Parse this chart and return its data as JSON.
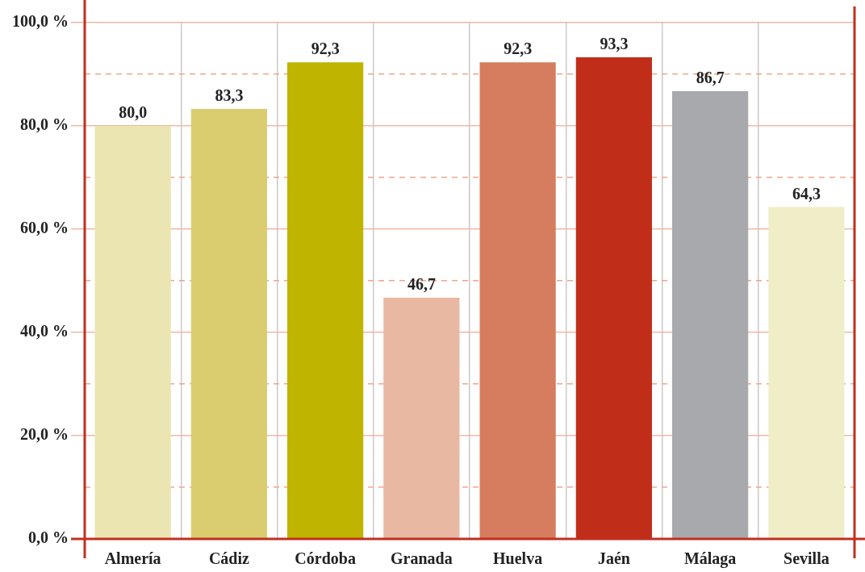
{
  "chart_data": {
    "type": "bar",
    "categories": [
      "Almería",
      "Cádiz",
      "Córdoba",
      "Granada",
      "Huelva",
      "Jaén",
      "Málaga",
      "Sevilla"
    ],
    "values": [
      80.0,
      83.3,
      92.3,
      46.7,
      92.3,
      93.3,
      86.7,
      64.3
    ],
    "colors": [
      "#ebe5b1",
      "#d9cd70",
      "#bfb400",
      "#e9b8a2",
      "#d67c5f",
      "#c02e1a",
      "#a8a9ac",
      "#f0edc9"
    ],
    "value_labels": [
      "80,0",
      "83,3",
      "92,3",
      "46,7",
      "92,3",
      "93,3",
      "86,7",
      "64,3"
    ],
    "ylim": [
      0,
      100
    ],
    "yticks": [
      {
        "value": 0,
        "label": "0,0 %"
      },
      {
        "value": 10,
        "label": null
      },
      {
        "value": 20,
        "label": "20,0 %"
      },
      {
        "value": 30,
        "label": null
      },
      {
        "value": 40,
        "label": "40,0 %"
      },
      {
        "value": 50,
        "label": null
      },
      {
        "value": 60,
        "label": "60,0 %"
      },
      {
        "value": 70,
        "label": null
      },
      {
        "value": 80,
        "label": "80,0 %"
      },
      {
        "value": 90,
        "label": null
      },
      {
        "value": 100,
        "label": "100,0 %"
      }
    ],
    "grid": true
  }
}
